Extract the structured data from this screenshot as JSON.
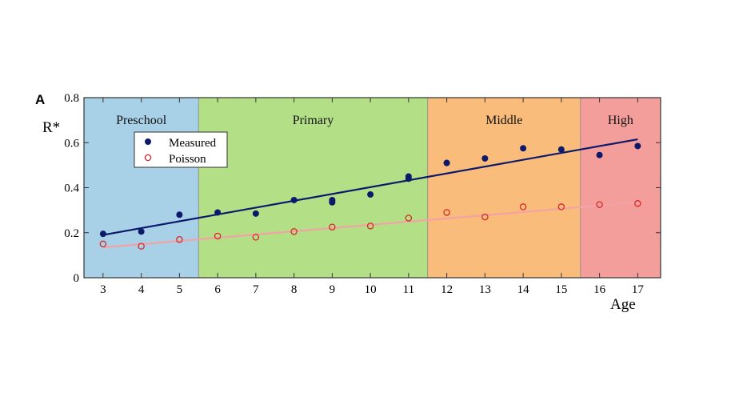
{
  "chart_data": {
    "type": "scatter",
    "panel_label": "A",
    "ylabel": "R*",
    "xlabel": "Age",
    "xlim": [
      2.5,
      17.6
    ],
    "ylim": [
      0,
      0.8
    ],
    "x_ticks": [
      3,
      4,
      5,
      6,
      7,
      8,
      9,
      10,
      11,
      12,
      13,
      14,
      15,
      16,
      17
    ],
    "x_tick_labels": [
      "3",
      "4",
      "5",
      "6",
      "7",
      "8",
      "9",
      "10",
      "11",
      "12",
      "13",
      "14",
      "15",
      "16",
      "17"
    ],
    "y_ticks": [
      0,
      0.2,
      0.4,
      0.6,
      0.8
    ],
    "y_tick_labels": [
      "0",
      "0.2",
      "0.4",
      "0.6",
      "0.8"
    ],
    "grid": false,
    "legend_position": "upper-left",
    "regions": [
      {
        "label": "Preschool",
        "from": 2.5,
        "to": 5.5,
        "color": "#a8d0e6"
      },
      {
        "label": "Primary",
        "from": 5.5,
        "to": 11.5,
        "color": "#b3df87"
      },
      {
        "label": "Middle",
        "from": 11.5,
        "to": 15.5,
        "color": "#f9bc7a"
      },
      {
        "label": "High",
        "from": 15.5,
        "to": 17.6,
        "color": "#f49e9b"
      }
    ],
    "series": [
      {
        "name": "Measured",
        "marker": "filled-circle",
        "color": "#0d1a6b",
        "points": [
          [
            3,
            0.195
          ],
          [
            4,
            0.205
          ],
          [
            5,
            0.28
          ],
          [
            6,
            0.29
          ],
          [
            7,
            0.285
          ],
          [
            8,
            0.345
          ],
          [
            9,
            0.335
          ],
          [
            9,
            0.345
          ],
          [
            10,
            0.37
          ],
          [
            11,
            0.44
          ],
          [
            11,
            0.45
          ],
          [
            12,
            0.51
          ],
          [
            12,
            0.51
          ],
          [
            13,
            0.53
          ],
          [
            14,
            0.575
          ],
          [
            15,
            0.57
          ],
          [
            16,
            0.545
          ],
          [
            17,
            0.585
          ]
        ],
        "fit": {
          "x": [
            3,
            17
          ],
          "y": [
            0.19,
            0.615
          ],
          "color": "#0d1a6b"
        }
      },
      {
        "name": "Poisson",
        "marker": "open-circle",
        "color": "#d62b2b",
        "points": [
          [
            3,
            0.15
          ],
          [
            4,
            0.14
          ],
          [
            5,
            0.17
          ],
          [
            6,
            0.185
          ],
          [
            7,
            0.18
          ],
          [
            8,
            0.205
          ],
          [
            9,
            0.225
          ],
          [
            10,
            0.23
          ],
          [
            11,
            0.265
          ],
          [
            12,
            0.29
          ],
          [
            13,
            0.27
          ],
          [
            14,
            0.315
          ],
          [
            15,
            0.315
          ],
          [
            16,
            0.325
          ],
          [
            17,
            0.33
          ]
        ],
        "fit": {
          "x": [
            3,
            17
          ],
          "y": [
            0.135,
            0.335
          ],
          "color": "#f3a3a6"
        }
      }
    ]
  }
}
